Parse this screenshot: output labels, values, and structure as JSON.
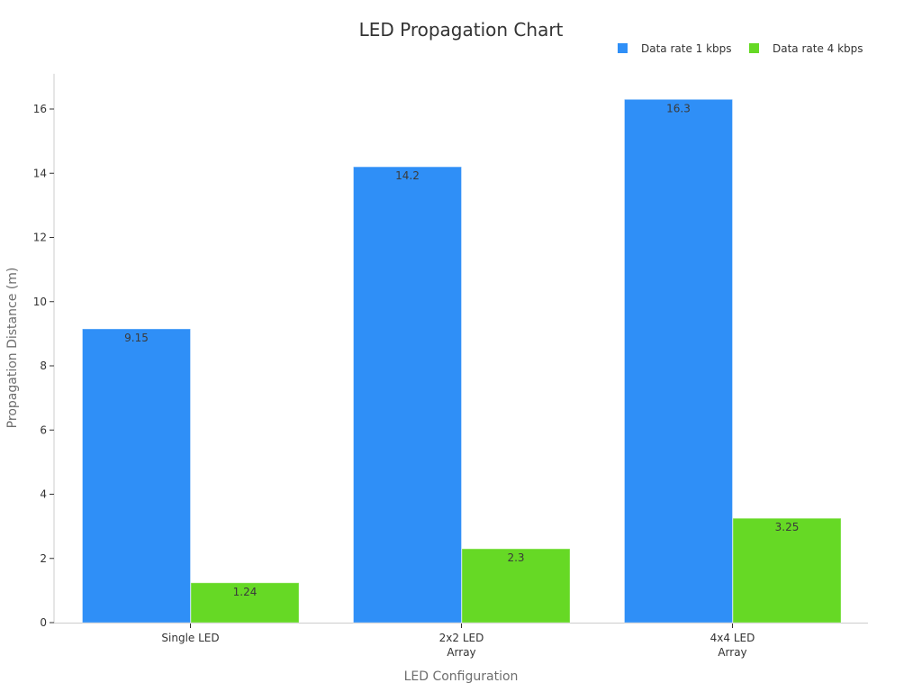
{
  "chart_data": {
    "type": "bar",
    "title": "LED Propagation Chart",
    "xlabel": "LED Configuration",
    "ylabel": "Propagation Distance (m)",
    "categories": [
      [
        "Single LED"
      ],
      [
        "2x2 LED",
        "Array"
      ],
      [
        "4x4 LED",
        "Array"
      ]
    ],
    "series": [
      {
        "name": "Data rate 1 kbps",
        "color": "#2f8ff7",
        "values": [
          9.15,
          14.2,
          16.3
        ],
        "labels": [
          "9.15",
          "14.2",
          "16.3"
        ]
      },
      {
        "name": "Data rate 4 kbps",
        "color": "#66d925",
        "values": [
          1.24,
          2.3,
          3.25
        ],
        "labels": [
          "1.24",
          "2.3",
          "3.25"
        ]
      }
    ],
    "ylim": [
      0,
      17.1
    ],
    "yticks": [
      0,
      2,
      4,
      6,
      8,
      10,
      12,
      14,
      16
    ],
    "grid": false,
    "legend": "top-right",
    "axis_color": "#cccccc"
  }
}
